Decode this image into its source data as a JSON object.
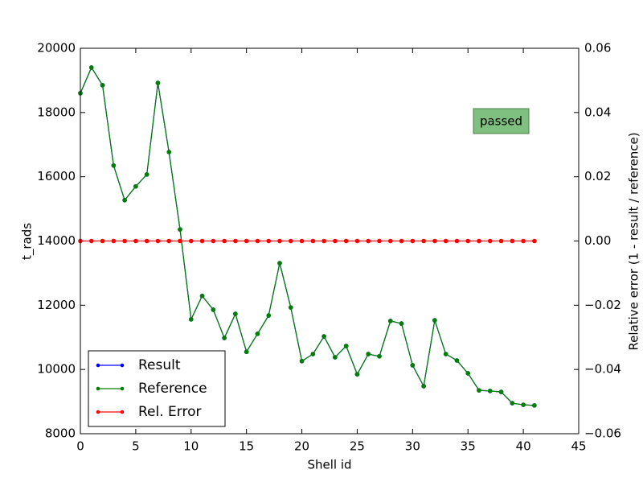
{
  "chart_data": {
    "type": "line",
    "xlabel": "Shell id",
    "ylabel": "t_rads",
    "y2label": "Relative error (1 - result / reference)",
    "annotation": "passed",
    "x": [
      0,
      1,
      2,
      3,
      4,
      5,
      6,
      7,
      8,
      9,
      10,
      11,
      12,
      13,
      14,
      15,
      16,
      17,
      18,
      19,
      20,
      21,
      22,
      23,
      24,
      25,
      26,
      27,
      28,
      29,
      30,
      31,
      32,
      33,
      34,
      35,
      36,
      37,
      38,
      39,
      40,
      41
    ],
    "series": [
      {
        "name": "Result",
        "color": "#0000ff",
        "values": [
          18600,
          19400,
          18850,
          16350,
          15270,
          15700,
          16070,
          18920,
          16770,
          14360,
          11560,
          12290,
          11860,
          10980,
          11730,
          10550,
          11110,
          11680,
          13310,
          11930,
          10260,
          10480,
          11030,
          10380,
          10730,
          9850,
          10480,
          10410,
          11510,
          11430,
          10130,
          9480,
          11530,
          10480,
          10280,
          9880,
          9350,
          9330,
          9300,
          8950,
          8900,
          8880
        ]
      },
      {
        "name": "Reference",
        "color": "#008000",
        "values": [
          18600,
          19400,
          18850,
          16350,
          15270,
          15700,
          16070,
          18920,
          16770,
          14360,
          11560,
          12290,
          11860,
          10980,
          11730,
          10550,
          11110,
          11680,
          13310,
          11930,
          10260,
          10480,
          11030,
          10380,
          10730,
          9850,
          10480,
          10410,
          11510,
          11430,
          10130,
          9480,
          11530,
          10480,
          10280,
          9880,
          9350,
          9330,
          9300,
          8950,
          8900,
          8880
        ]
      },
      {
        "name": "Rel. Error",
        "color": "#ff0000",
        "axis": "y2",
        "values": [
          0,
          0,
          0,
          0,
          0,
          0,
          0,
          0,
          0,
          0,
          0,
          0,
          0,
          0,
          0,
          0,
          0,
          0,
          0,
          0,
          0,
          0,
          0,
          0,
          0,
          0,
          0,
          0,
          0,
          0,
          0,
          0,
          0,
          0,
          0,
          0,
          0,
          0,
          0,
          0,
          0,
          0
        ]
      }
    ],
    "xlim": [
      0,
      45
    ],
    "xticks": [
      0,
      5,
      10,
      15,
      20,
      25,
      30,
      35,
      40,
      45
    ],
    "ylim": [
      8000,
      20000
    ],
    "yticks": [
      8000,
      10000,
      12000,
      14000,
      16000,
      18000,
      20000
    ],
    "y2lim": [
      -0.06,
      0.06
    ],
    "y2ticks": [
      {
        "value": -0.06,
        "label": "−0.06"
      },
      {
        "value": -0.04,
        "label": "−0.04"
      },
      {
        "value": -0.02,
        "label": "−0.02"
      },
      {
        "value": 0,
        "label": "0.00"
      },
      {
        "value": 0.02,
        "label": "0.02"
      },
      {
        "value": 0.04,
        "label": "0.04"
      },
      {
        "value": 0.06,
        "label": "0.06"
      }
    ],
    "legend": "lower left",
    "grid": false
  }
}
